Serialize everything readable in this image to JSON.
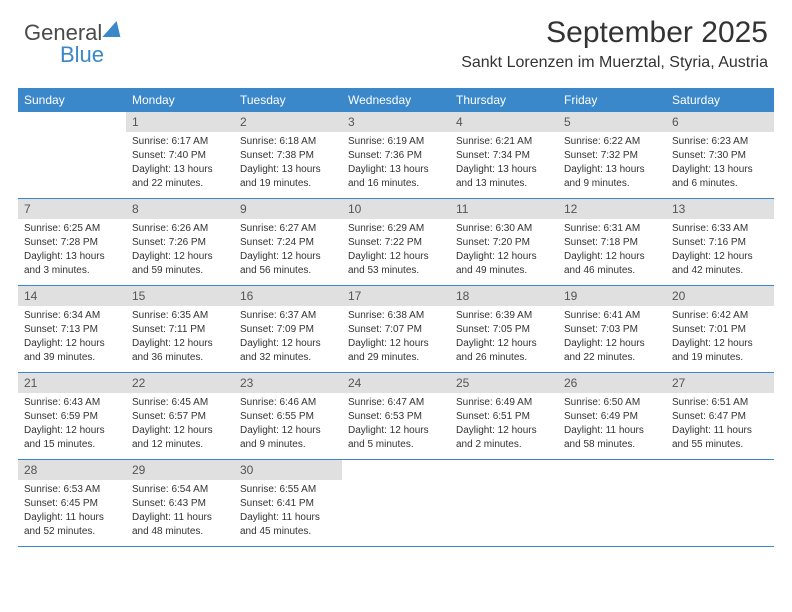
{
  "brand": {
    "word1": "General",
    "word2": "Blue"
  },
  "title": "September 2025",
  "location": "Sankt Lorenzen im Muerztal, Styria, Austria",
  "colors": {
    "accent": "#3a87c9",
    "dateBar": "#e0e0e0",
    "text": "#333333",
    "background": "#ffffff",
    "cellBorder": "#3a87c9"
  },
  "layout": {
    "columns": 7,
    "rows": 5,
    "header_fontsize": 12,
    "date_fontsize": 12,
    "detail_fontsize": 10
  },
  "dayHeaders": [
    "Sunday",
    "Monday",
    "Tuesday",
    "Wednesday",
    "Thursday",
    "Friday",
    "Saturday"
  ],
  "weeks": [
    [
      {
        "date": "",
        "sunrise": "",
        "sunset": "",
        "daylight": ""
      },
      {
        "date": "1",
        "sunrise": "Sunrise: 6:17 AM",
        "sunset": "Sunset: 7:40 PM",
        "daylight": "Daylight: 13 hours and 22 minutes."
      },
      {
        "date": "2",
        "sunrise": "Sunrise: 6:18 AM",
        "sunset": "Sunset: 7:38 PM",
        "daylight": "Daylight: 13 hours and 19 minutes."
      },
      {
        "date": "3",
        "sunrise": "Sunrise: 6:19 AM",
        "sunset": "Sunset: 7:36 PM",
        "daylight": "Daylight: 13 hours and 16 minutes."
      },
      {
        "date": "4",
        "sunrise": "Sunrise: 6:21 AM",
        "sunset": "Sunset: 7:34 PM",
        "daylight": "Daylight: 13 hours and 13 minutes."
      },
      {
        "date": "5",
        "sunrise": "Sunrise: 6:22 AM",
        "sunset": "Sunset: 7:32 PM",
        "daylight": "Daylight: 13 hours and 9 minutes."
      },
      {
        "date": "6",
        "sunrise": "Sunrise: 6:23 AM",
        "sunset": "Sunset: 7:30 PM",
        "daylight": "Daylight: 13 hours and 6 minutes."
      }
    ],
    [
      {
        "date": "7",
        "sunrise": "Sunrise: 6:25 AM",
        "sunset": "Sunset: 7:28 PM",
        "daylight": "Daylight: 13 hours and 3 minutes."
      },
      {
        "date": "8",
        "sunrise": "Sunrise: 6:26 AM",
        "sunset": "Sunset: 7:26 PM",
        "daylight": "Daylight: 12 hours and 59 minutes."
      },
      {
        "date": "9",
        "sunrise": "Sunrise: 6:27 AM",
        "sunset": "Sunset: 7:24 PM",
        "daylight": "Daylight: 12 hours and 56 minutes."
      },
      {
        "date": "10",
        "sunrise": "Sunrise: 6:29 AM",
        "sunset": "Sunset: 7:22 PM",
        "daylight": "Daylight: 12 hours and 53 minutes."
      },
      {
        "date": "11",
        "sunrise": "Sunrise: 6:30 AM",
        "sunset": "Sunset: 7:20 PM",
        "daylight": "Daylight: 12 hours and 49 minutes."
      },
      {
        "date": "12",
        "sunrise": "Sunrise: 6:31 AM",
        "sunset": "Sunset: 7:18 PM",
        "daylight": "Daylight: 12 hours and 46 minutes."
      },
      {
        "date": "13",
        "sunrise": "Sunrise: 6:33 AM",
        "sunset": "Sunset: 7:16 PM",
        "daylight": "Daylight: 12 hours and 42 minutes."
      }
    ],
    [
      {
        "date": "14",
        "sunrise": "Sunrise: 6:34 AM",
        "sunset": "Sunset: 7:13 PM",
        "daylight": "Daylight: 12 hours and 39 minutes."
      },
      {
        "date": "15",
        "sunrise": "Sunrise: 6:35 AM",
        "sunset": "Sunset: 7:11 PM",
        "daylight": "Daylight: 12 hours and 36 minutes."
      },
      {
        "date": "16",
        "sunrise": "Sunrise: 6:37 AM",
        "sunset": "Sunset: 7:09 PM",
        "daylight": "Daylight: 12 hours and 32 minutes."
      },
      {
        "date": "17",
        "sunrise": "Sunrise: 6:38 AM",
        "sunset": "Sunset: 7:07 PM",
        "daylight": "Daylight: 12 hours and 29 minutes."
      },
      {
        "date": "18",
        "sunrise": "Sunrise: 6:39 AM",
        "sunset": "Sunset: 7:05 PM",
        "daylight": "Daylight: 12 hours and 26 minutes."
      },
      {
        "date": "19",
        "sunrise": "Sunrise: 6:41 AM",
        "sunset": "Sunset: 7:03 PM",
        "daylight": "Daylight: 12 hours and 22 minutes."
      },
      {
        "date": "20",
        "sunrise": "Sunrise: 6:42 AM",
        "sunset": "Sunset: 7:01 PM",
        "daylight": "Daylight: 12 hours and 19 minutes."
      }
    ],
    [
      {
        "date": "21",
        "sunrise": "Sunrise: 6:43 AM",
        "sunset": "Sunset: 6:59 PM",
        "daylight": "Daylight: 12 hours and 15 minutes."
      },
      {
        "date": "22",
        "sunrise": "Sunrise: 6:45 AM",
        "sunset": "Sunset: 6:57 PM",
        "daylight": "Daylight: 12 hours and 12 minutes."
      },
      {
        "date": "23",
        "sunrise": "Sunrise: 6:46 AM",
        "sunset": "Sunset: 6:55 PM",
        "daylight": "Daylight: 12 hours and 9 minutes."
      },
      {
        "date": "24",
        "sunrise": "Sunrise: 6:47 AM",
        "sunset": "Sunset: 6:53 PM",
        "daylight": "Daylight: 12 hours and 5 minutes."
      },
      {
        "date": "25",
        "sunrise": "Sunrise: 6:49 AM",
        "sunset": "Sunset: 6:51 PM",
        "daylight": "Daylight: 12 hours and 2 minutes."
      },
      {
        "date": "26",
        "sunrise": "Sunrise: 6:50 AM",
        "sunset": "Sunset: 6:49 PM",
        "daylight": "Daylight: 11 hours and 58 minutes."
      },
      {
        "date": "27",
        "sunrise": "Sunrise: 6:51 AM",
        "sunset": "Sunset: 6:47 PM",
        "daylight": "Daylight: 11 hours and 55 minutes."
      }
    ],
    [
      {
        "date": "28",
        "sunrise": "Sunrise: 6:53 AM",
        "sunset": "Sunset: 6:45 PM",
        "daylight": "Daylight: 11 hours and 52 minutes."
      },
      {
        "date": "29",
        "sunrise": "Sunrise: 6:54 AM",
        "sunset": "Sunset: 6:43 PM",
        "daylight": "Daylight: 11 hours and 48 minutes."
      },
      {
        "date": "30",
        "sunrise": "Sunrise: 6:55 AM",
        "sunset": "Sunset: 6:41 PM",
        "daylight": "Daylight: 11 hours and 45 minutes."
      },
      {
        "date": "",
        "sunrise": "",
        "sunset": "",
        "daylight": ""
      },
      {
        "date": "",
        "sunrise": "",
        "sunset": "",
        "daylight": ""
      },
      {
        "date": "",
        "sunrise": "",
        "sunset": "",
        "daylight": ""
      },
      {
        "date": "",
        "sunrise": "",
        "sunset": "",
        "daylight": ""
      }
    ]
  ]
}
